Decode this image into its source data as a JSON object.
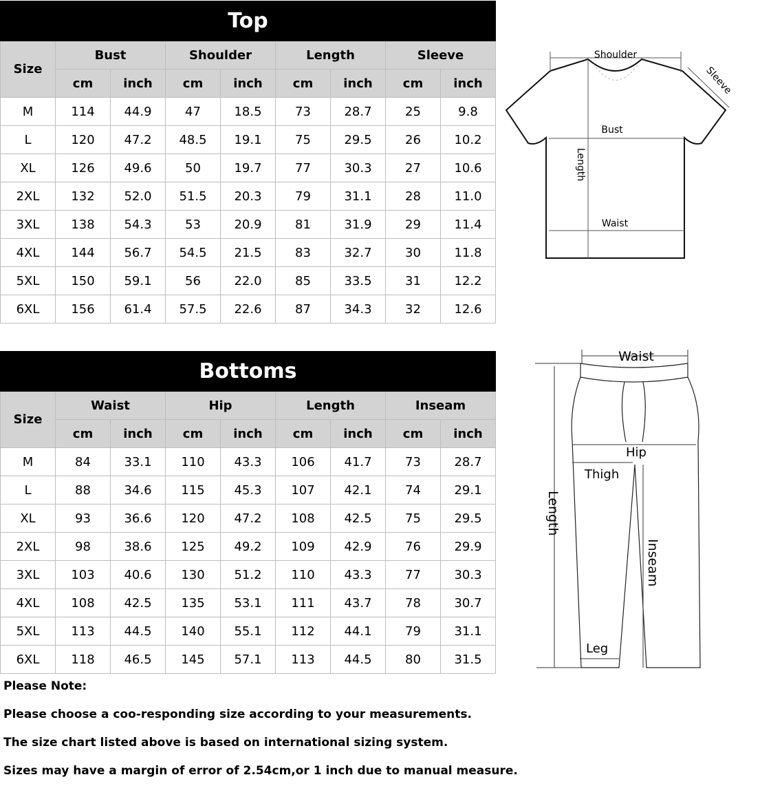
{
  "top": {
    "title": "Top",
    "size_label": "Size",
    "groups": [
      "Bust",
      "Shoulder",
      "Length",
      "Sleeve"
    ],
    "units": [
      "cm",
      "inch",
      "cm",
      "inch",
      "cm",
      "inch",
      "cm",
      "inch"
    ],
    "rows": [
      [
        "M",
        "114",
        "44.9",
        "47",
        "18.5",
        "73",
        "28.7",
        "25",
        "9.8"
      ],
      [
        "L",
        "120",
        "47.2",
        "48.5",
        "19.1",
        "75",
        "29.5",
        "26",
        "10.2"
      ],
      [
        "XL",
        "126",
        "49.6",
        "50",
        "19.7",
        "77",
        "30.3",
        "27",
        "10.6"
      ],
      [
        "2XL",
        "132",
        "52.0",
        "51.5",
        "20.3",
        "79",
        "31.1",
        "28",
        "11.0"
      ],
      [
        "3XL",
        "138",
        "54.3",
        "53",
        "20.9",
        "81",
        "31.9",
        "29",
        "11.4"
      ],
      [
        "4XL",
        "144",
        "56.7",
        "54.5",
        "21.5",
        "83",
        "32.7",
        "30",
        "11.8"
      ],
      [
        "5XL",
        "150",
        "59.1",
        "56",
        "22.0",
        "85",
        "33.5",
        "31",
        "12.2"
      ],
      [
        "6XL",
        "156",
        "61.4",
        "57.5",
        "22.6",
        "87",
        "34.3",
        "32",
        "12.6"
      ]
    ]
  },
  "bottom": {
    "title": "Bottoms",
    "size_label": "Size",
    "groups": [
      "Waist",
      "Hip",
      "Length",
      "Inseam"
    ],
    "units": [
      "cm",
      "inch",
      "cm",
      "inch",
      "cm",
      "inch",
      "cm",
      "inch"
    ],
    "rows": [
      [
        "M",
        "84",
        "33.1",
        "110",
        "43.3",
        "106",
        "41.7",
        "73",
        "28.7"
      ],
      [
        "L",
        "88",
        "34.6",
        "115",
        "45.3",
        "107",
        "42.1",
        "74",
        "29.1"
      ],
      [
        "XL",
        "93",
        "36.6",
        "120",
        "47.2",
        "108",
        "42.5",
        "75",
        "29.5"
      ],
      [
        "2XL",
        "98",
        "38.6",
        "125",
        "49.2",
        "109",
        "42.9",
        "76",
        "29.9"
      ],
      [
        "3XL",
        "103",
        "40.6",
        "130",
        "51.2",
        "110",
        "43.3",
        "77",
        "30.3"
      ],
      [
        "4XL",
        "108",
        "42.5",
        "135",
        "53.1",
        "111",
        "43.7",
        "78",
        "30.7"
      ],
      [
        "5XL",
        "113",
        "44.5",
        "140",
        "55.1",
        "112",
        "44.1",
        "79",
        "31.1"
      ],
      [
        "6XL",
        "118",
        "46.5",
        "145",
        "57.1",
        "113",
        "44.5",
        "80",
        "31.5"
      ]
    ]
  },
  "shirt_diagram": {
    "shoulder": "Shoulder",
    "sleeve": "Sleeve",
    "bust": "Bust",
    "length": "Length",
    "waist": "Waist"
  },
  "pants_diagram": {
    "waist": "Waist",
    "hip": "Hip",
    "thigh": "Thigh",
    "length": "Length",
    "inseam": "Inseam",
    "leg": "Leg"
  },
  "notes": [
    "Please Note:",
    "Please choose a coo-responding size according to your measurements.",
    "The size chart listed above is based on international sizing system.",
    "Sizes may have a margin of error of 2.54cm,or 1 inch due to manual measure."
  ]
}
